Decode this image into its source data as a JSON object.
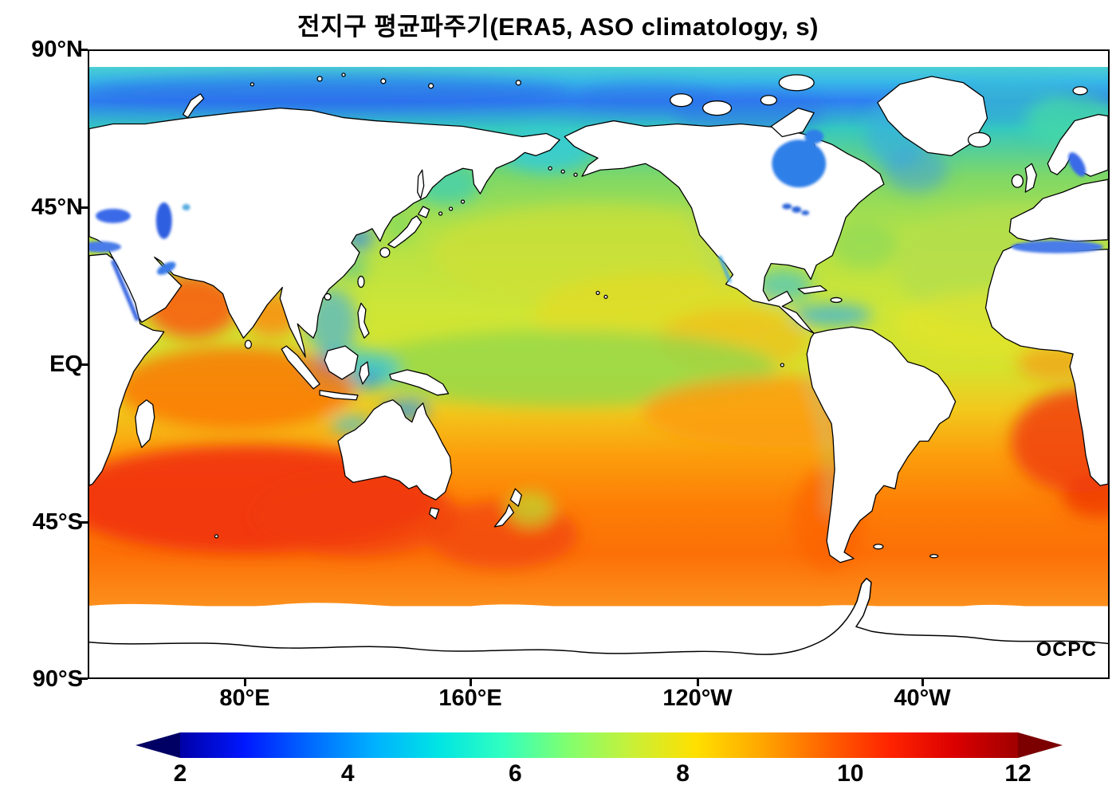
{
  "title": "전지구 평균파주기(ERA5, ASO climatology, s)",
  "watermark": "OCPC",
  "axes": {
    "y_ticks": [
      "90°N",
      "45°N",
      "EQ",
      "45°S",
      "90°S"
    ],
    "x_ticks": [
      "80°E",
      "160°E",
      "120°W",
      "40°W"
    ]
  },
  "colorbar": {
    "tick_labels": [
      "2",
      "4",
      "6",
      "8",
      "10",
      "12"
    ],
    "min": 2,
    "max": 12,
    "units": "s",
    "extend": "both",
    "colormap_name": "jet",
    "gradient": [
      "#0000a8",
      "#0018ff",
      "#0068ff",
      "#00b0ff",
      "#00e4e4",
      "#30ffc0",
      "#80ff70",
      "#c8f038",
      "#ffe000",
      "#ffa800",
      "#ff6400",
      "#ff2400",
      "#dc0000",
      "#a00000"
    ],
    "under_color": "#000064",
    "over_color": "#7c0000"
  },
  "chart_data": {
    "type": "heatmap",
    "title": "전지구 평균파주기(ERA5, ASO climatology, s)",
    "variable": "mean wave period",
    "dataset": "ERA5",
    "period": "ASO climatology",
    "units": "s",
    "projection": "equirectangular world map, Pacific-centered (left/right edges near 25°E)",
    "x_axis": {
      "tick_labels": [
        "80°E",
        "160°E",
        "120°W",
        "40°W"
      ]
    },
    "y_axis": {
      "tick_labels": [
        "90°N",
        "45°N",
        "EQ",
        "45°S",
        "90°S"
      ]
    },
    "colorbar_range": [
      2,
      12
    ],
    "colorbar_ticks": [
      2,
      4,
      6,
      8,
      10,
      12
    ],
    "grid": false,
    "legend_position": "bottom colorbar with triangular under/over extensions",
    "annotations": [
      "OCPC logo, bottom-right inside map"
    ],
    "regional_values_s": [
      {
        "region": "Arctic Ocean band (75–85°N)",
        "value": 4.5
      },
      {
        "region": "Russian Arctic coastal band (70–75°N)",
        "value": 3
      },
      {
        "region": "Bering Sea",
        "value": 5
      },
      {
        "region": "Sea of Okhotsk",
        "value": 5.5
      },
      {
        "region": "North Pacific (40–55°N)",
        "value": 6.5
      },
      {
        "region": "Central subtropical North Pacific (20–35°N)",
        "value": 7.5
      },
      {
        "region": "Eastern tropical North Pacific (off Mexico)",
        "value": 8.5
      },
      {
        "region": "Equatorial west-central Pacific",
        "value": 7
      },
      {
        "region": "Eastern tropical South Pacific (0–20°S)",
        "value": 9.5
      },
      {
        "region": "South Pacific (20–50°S)",
        "value": 9.5
      },
      {
        "region": "Tasman Sea / south of Australia",
        "value": 10.5
      },
      {
        "region": "Arabian Sea",
        "value": 10
      },
      {
        "region": "Bay of Bengal",
        "value": 9
      },
      {
        "region": "Tropical Indian Ocean (0–25°S)",
        "value": 10
      },
      {
        "region": "South Indian Ocean (30–55°S)",
        "value": 11.5
      },
      {
        "region": "Indonesian / Maritime-Continent seas",
        "value": 4.5
      },
      {
        "region": "South China Sea",
        "value": 6
      },
      {
        "region": "Yellow Sea / Bohai",
        "value": 4
      },
      {
        "region": "North Atlantic (35–55°N)",
        "value": 6.5
      },
      {
        "region": "Subtropical North Atlantic",
        "value": 7.5
      },
      {
        "region": "Norwegian / Greenland Sea",
        "value": 5.5
      },
      {
        "region": "Labrador Sea / Baffin Bay",
        "value": 4.5
      },
      {
        "region": "Gulf of Mexico / Caribbean",
        "value": 5.5
      },
      {
        "region": "Equatorial Atlantic",
        "value": 8
      },
      {
        "region": "South Atlantic off SW Africa (10–35°S)",
        "value": 10.5
      },
      {
        "region": "South Atlantic (35–55°S)",
        "value": 9.5
      },
      {
        "region": "Southern Ocean near data edge (55–62°S)",
        "value": 9
      },
      {
        "region": "Mediterranean Sea",
        "value": 4
      },
      {
        "region": "Hudson Bay",
        "value": 3.5
      },
      {
        "region": "Baltic Sea / Black Sea / Caspian Sea / Persian Gulf / Red Sea",
        "value": 3.5
      }
    ]
  }
}
